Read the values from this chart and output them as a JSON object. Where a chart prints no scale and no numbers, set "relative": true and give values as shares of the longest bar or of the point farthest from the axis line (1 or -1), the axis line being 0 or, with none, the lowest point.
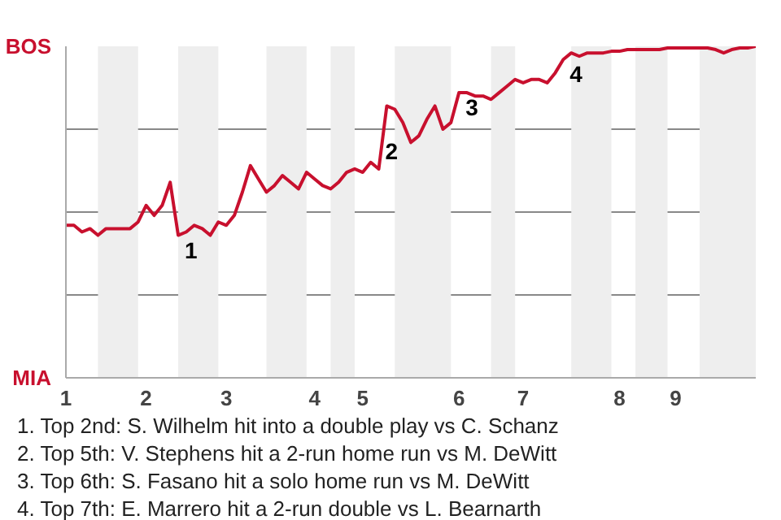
{
  "chart_data": {
    "type": "line",
    "relative": true,
    "categories": [
      "1",
      null,
      null,
      null,
      null,
      null,
      null,
      null,
      null,
      null,
      "2",
      null,
      null,
      null,
      null,
      null,
      null,
      null,
      null,
      null,
      "3",
      null,
      null,
      null,
      null,
      null,
      null,
      null,
      null,
      null,
      null,
      "4",
      null,
      null,
      null,
      null,
      null,
      "5",
      null,
      null,
      null,
      null,
      null,
      null,
      null,
      null,
      null,
      null,
      null,
      "6",
      null,
      null,
      null,
      null,
      null,
      null,
      null,
      "7",
      null,
      null,
      null,
      null,
      null,
      null,
      null,
      null,
      null,
      null,
      null,
      "8",
      null,
      null,
      null,
      null,
      null,
      null,
      "9",
      null,
      null,
      null,
      null,
      null,
      null,
      null,
      null,
      null,
      null
    ],
    "series": [
      {
        "color": "#c8102e",
        "values": [
          0.46,
          0.46,
          0.44,
          0.45,
          0.43,
          0.45,
          0.45,
          0.45,
          0.45,
          0.47,
          0.52,
          0.49,
          0.52,
          0.59,
          0.43,
          0.44,
          0.46,
          0.45,
          0.43,
          0.47,
          0.46,
          0.49,
          0.56,
          0.64,
          0.6,
          0.56,
          0.58,
          0.61,
          0.59,
          0.57,
          0.62,
          0.6,
          0.58,
          0.57,
          0.59,
          0.62,
          0.63,
          0.62,
          0.65,
          0.63,
          0.82,
          0.81,
          0.77,
          0.71,
          0.73,
          0.78,
          0.82,
          0.75,
          0.77,
          0.86,
          0.86,
          0.85,
          0.85,
          0.84,
          0.86,
          0.88,
          0.9,
          0.89,
          0.9,
          0.9,
          0.89,
          0.92,
          0.96,
          0.98,
          0.97,
          0.98,
          0.98,
          0.98,
          0.985,
          0.985,
          0.99,
          0.99,
          0.99,
          0.99,
          0.99,
          0.995,
          0.995,
          0.995,
          0.995,
          0.995,
          0.995,
          0.99,
          0.98,
          0.99,
          0.995,
          0.995,
          1
        ]
      }
    ],
    "grid": "y",
    "line_style": "solid",
    "annotations": [
      "BOS",
      "MIA",
      "1",
      "2",
      "3",
      "4",
      "1. Top 2nd: S. Wilhelm hit into a double play vs C. Schanz",
      "2. Top 5th: V. Stephens hit a 2-run home run vs M. DeWitt",
      "3. Top 6th: S. Fasano hit a solo home run vs M. DeWitt",
      "4. Top 7th: E. Marrero hit a 2-run double vs L. Bearnarth"
    ]
  }
}
